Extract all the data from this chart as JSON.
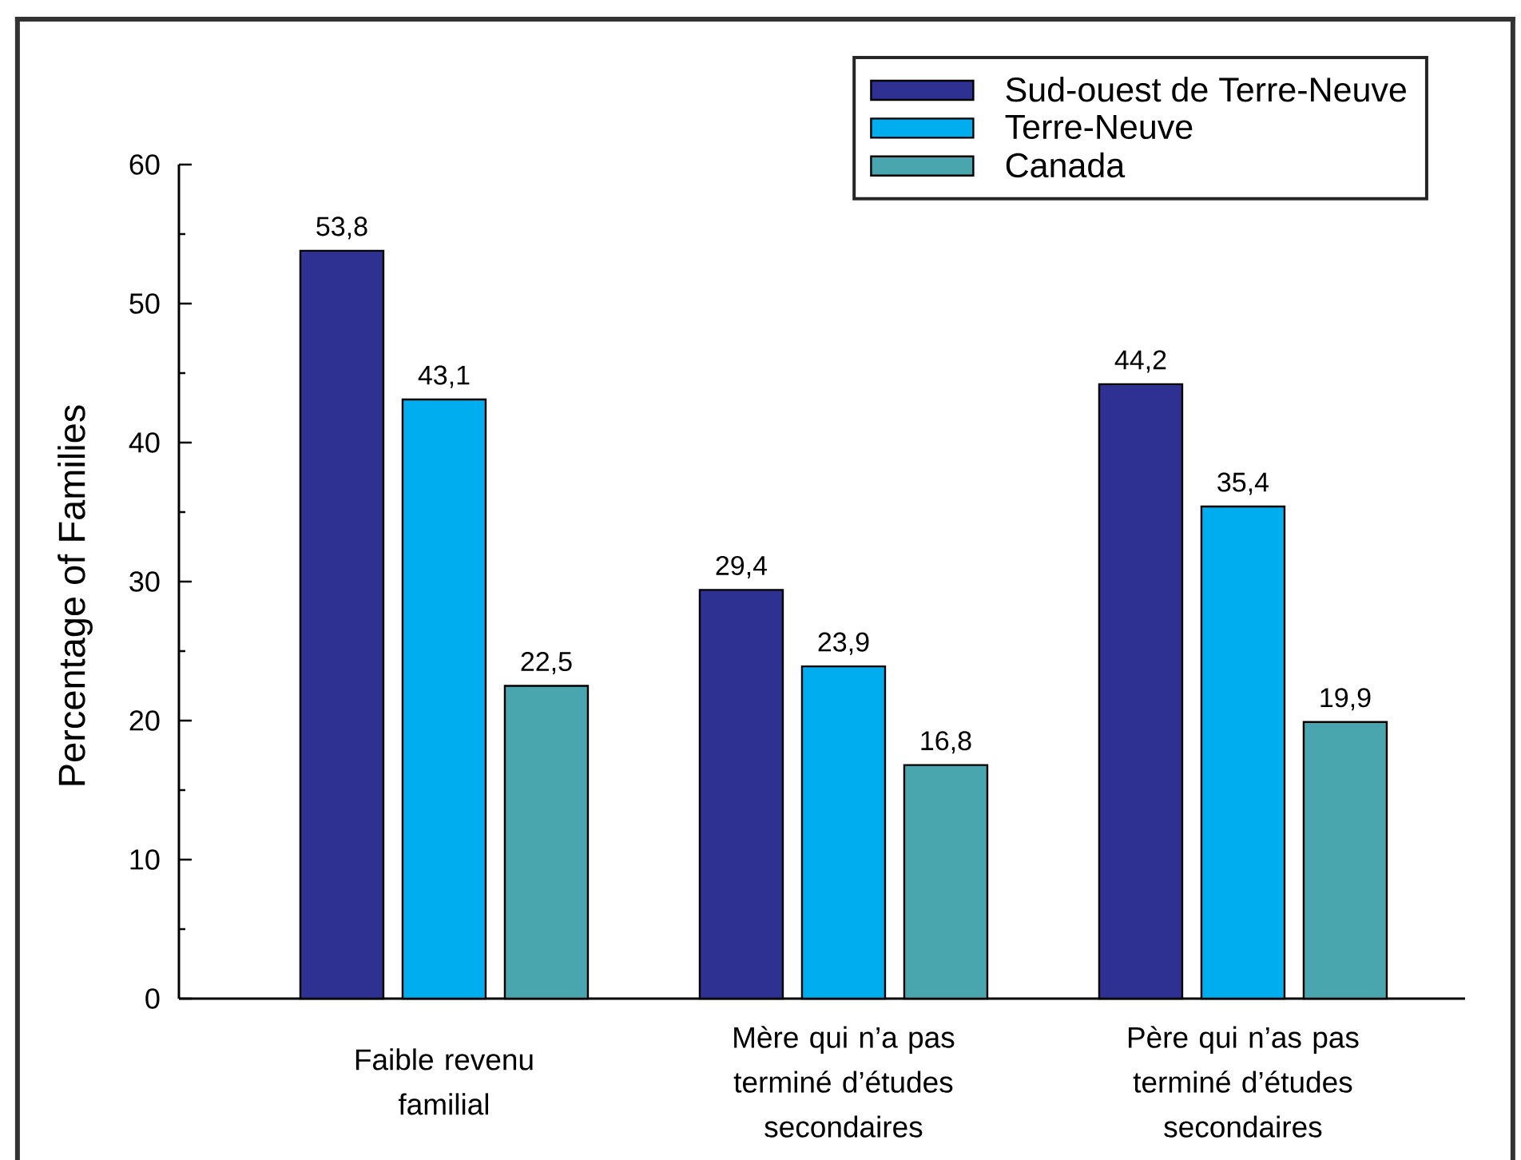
{
  "chart_data": {
    "type": "bar",
    "ylabel": "Percentage of Families",
    "categories": [
      "Faible revenu familial",
      "Mère qui n’a pas terminé d’études secondaires",
      "Père qui n’as pas terminé d’études secondaires"
    ],
    "series": [
      {
        "name": "Sud-ouest de Terre-Neuve",
        "color": "#2e3192",
        "values": [
          53.8,
          29.4,
          44.2
        ],
        "value_labels": [
          "53,8",
          "29,4",
          "44,2"
        ]
      },
      {
        "name": "Terre-Neuve",
        "color": "#00aeef",
        "values": [
          43.1,
          23.9,
          35.4
        ],
        "value_labels": [
          "43,1",
          "23,9",
          "35,4"
        ]
      },
      {
        "name": "Canada",
        "color": "#49a6ae",
        "values": [
          22.5,
          16.8,
          19.9
        ],
        "value_labels": [
          "22,5",
          "16,8",
          "19,9"
        ]
      }
    ],
    "ylim": [
      0,
      60
    ],
    "yticks": [
      0,
      {
        "value": 5,
        "label": null
      },
      10,
      {
        "value": 15,
        "label": null
      },
      20,
      {
        "value": 25,
        "label": null
      },
      30,
      {
        "value": 35,
        "label": null
      },
      40,
      {
        "value": 45,
        "label": null
      },
      50,
      {
        "value": 55,
        "label": null
      },
      60
    ],
    "legend": "top right"
  }
}
